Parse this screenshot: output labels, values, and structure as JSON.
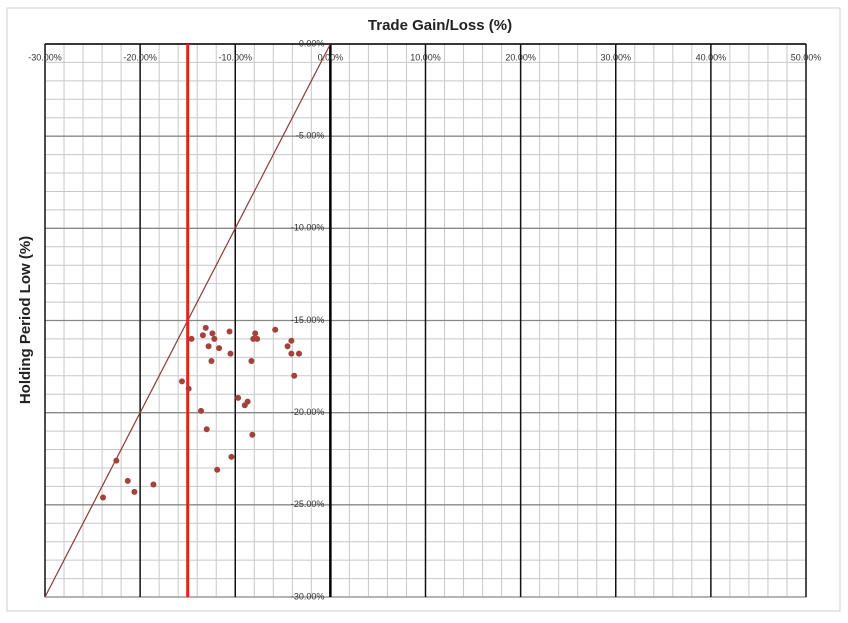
{
  "chart_data": {
    "type": "scatter",
    "title": "Trade Gain/Loss (%)",
    "y_label": "Holding Period Low (%)",
    "x": [
      -23.9,
      -22.5,
      -21.3,
      -20.6,
      -18.6,
      -15.6,
      -14.9,
      -14.6,
      -13.6,
      -13.4,
      -13.1,
      -13.0,
      -12.8,
      -12.5,
      -12.4,
      -12.2,
      -11.9,
      -11.7,
      -10.6,
      -10.5,
      -10.4,
      -9.7,
      -9.0,
      -8.7,
      -8.2,
      -8.3,
      -8.1,
      -7.9,
      -7.7,
      -5.8,
      -4.5,
      -4.1,
      -4.1,
      -3.8,
      -3.3
    ],
    "series": [
      {
        "color": "#a3423a",
        "values": [
          -24.6,
          -22.6,
          -23.7,
          -24.3,
          -23.9,
          -18.3,
          -18.7,
          -16.0,
          -19.9,
          -15.8,
          -15.4,
          -20.9,
          -16.4,
          -17.2,
          -15.7,
          -16.0,
          -23.1,
          -16.5,
          -15.6,
          -16.8,
          -22.4,
          -19.2,
          -19.6,
          -19.4,
          -21.2,
          -17.2,
          -16.0,
          -15.7,
          -16.0,
          -15.5,
          -16.4,
          -16.1,
          -16.8,
          -18.0,
          -16.8
        ]
      }
    ],
    "xlim": [
      -30,
      50
    ],
    "ylim": [
      -30,
      0
    ],
    "xticks": [
      {
        "value": -30,
        "label": "-30.00%"
      },
      {
        "value": -20,
        "label": "-20.00%"
      },
      {
        "value": -10,
        "label": "-10.00%"
      },
      {
        "value": 0,
        "label": "0.00%"
      },
      {
        "value": 10,
        "label": "10.00%"
      },
      {
        "value": 20,
        "label": "20.00%"
      },
      {
        "value": 30,
        "label": "30.00%"
      },
      {
        "value": 40,
        "label": "40.00%"
      },
      {
        "value": 50,
        "label": "50.00%"
      }
    ],
    "yticks": [
      {
        "value": 0,
        "label": "0.00%"
      },
      {
        "value": -5,
        "label": "-5.00%"
      },
      {
        "value": -10,
        "label": "-10.00%"
      },
      {
        "value": -15,
        "label": "-15.00%"
      },
      {
        "value": -20,
        "label": "-20.00%"
      },
      {
        "value": -25,
        "label": "-25.00%"
      },
      {
        "value": -30,
        "label": "-30.00%"
      }
    ],
    "grid": true,
    "reference_line": {
      "x": [
        -30,
        0
      ],
      "y": [
        -30,
        0
      ],
      "color": "#8b3a34"
    },
    "vline": {
      "x": -15,
      "color": "#e8201c"
    }
  }
}
